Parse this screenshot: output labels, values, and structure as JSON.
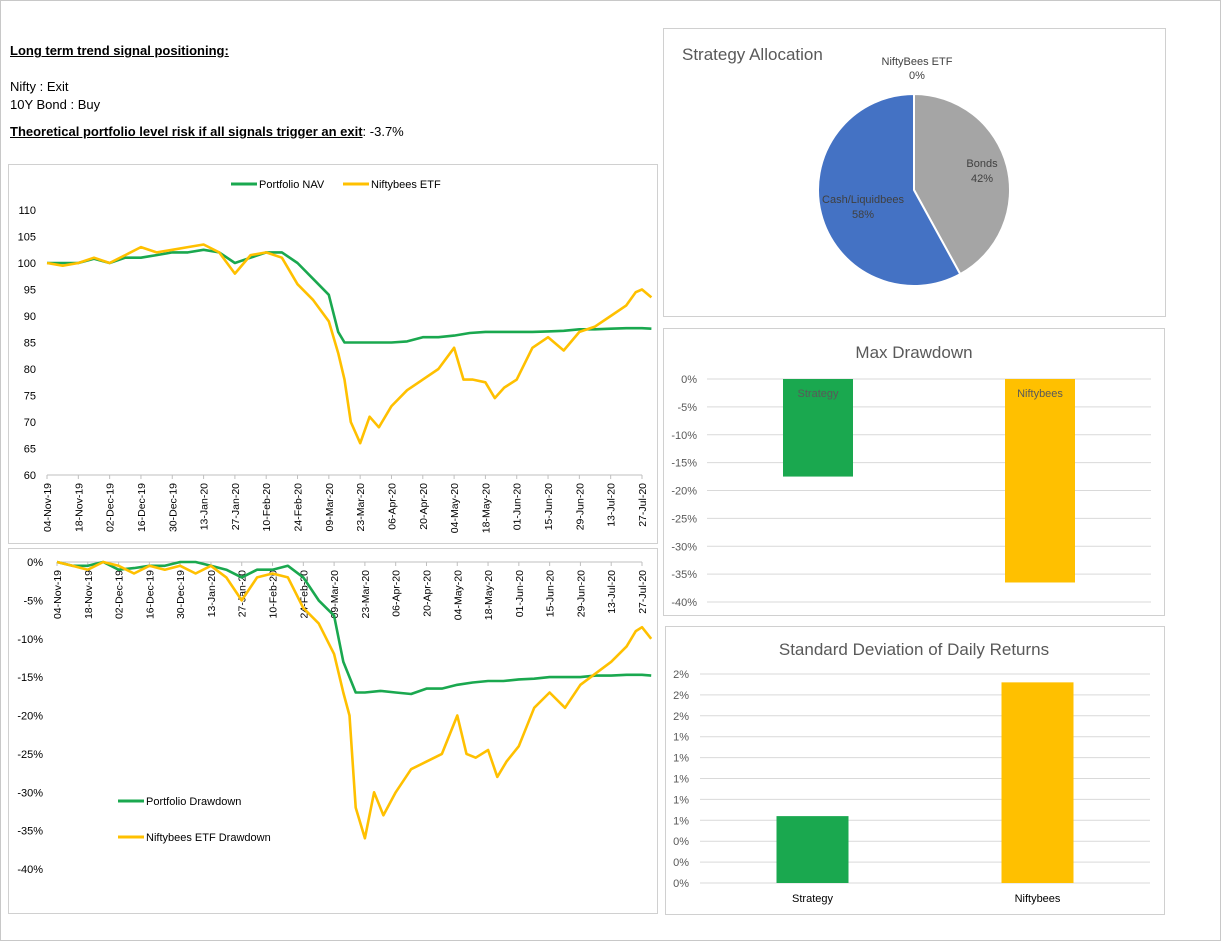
{
  "signals": {
    "heading": "Long term trend signal positioning:",
    "nifty_label": "Nifty",
    "nifty_value": "Exit",
    "bond_label": "10Y Bond",
    "bond_value": "Buy",
    "risk_label": "Theoretical portfolio level risk if all signals trigger an exit",
    "risk_value": "-3.7%"
  },
  "colors": {
    "green": "#1aa84f",
    "yellow": "#ffc000",
    "blue": "#4472c4",
    "grey": "#a5a5a5",
    "grid": "#d9d9d9",
    "axis_text": "#595959"
  },
  "chart_data": [
    {
      "id": "nav",
      "type": "line",
      "title": "",
      "x": [
        "04-Nov-19",
        "18-Nov-19",
        "02-Dec-19",
        "16-Dec-19",
        "30-Dec-19",
        "13-Jan-20",
        "27-Jan-20",
        "10-Feb-20",
        "24-Feb-20",
        "09-Mar-20",
        "23-Mar-20",
        "06-Apr-20",
        "20-Apr-20",
        "04-May-20",
        "18-May-20",
        "01-Jun-20",
        "15-Jun-20",
        "29-Jun-20",
        "13-Jul-20",
        "27-Jul-20"
      ],
      "ylim": [
        60,
        110
      ],
      "yticks": [
        60,
        65,
        70,
        75,
        80,
        85,
        90,
        95,
        100,
        105,
        110
      ],
      "legend_position": "top",
      "series": [
        {
          "name": "Portfolio NAV",
          "color_key": "green",
          "points": [
            [
              0,
              100
            ],
            [
              0.5,
              100
            ],
            [
              1,
              100
            ],
            [
              1.5,
              100.8
            ],
            [
              2,
              100
            ],
            [
              2.5,
              101
            ],
            [
              3,
              101
            ],
            [
              3.5,
              101.5
            ],
            [
              4,
              102
            ],
            [
              4.5,
              102
            ],
            [
              5,
              102.5
            ],
            [
              5.5,
              102
            ],
            [
              6,
              100
            ],
            [
              6.5,
              101
            ],
            [
              7,
              102
            ],
            [
              7.5,
              102
            ],
            [
              8,
              100
            ],
            [
              8.5,
              97
            ],
            [
              9,
              94
            ],
            [
              9.3,
              87
            ],
            [
              9.5,
              85
            ],
            [
              10,
              85
            ],
            [
              10.5,
              85
            ],
            [
              11,
              85
            ],
            [
              11.5,
              85.2
            ],
            [
              12,
              86
            ],
            [
              12.5,
              86
            ],
            [
              13,
              86.3
            ],
            [
              13.5,
              86.8
            ],
            [
              14,
              87
            ],
            [
              14.5,
              87
            ],
            [
              15,
              87
            ],
            [
              15.5,
              87
            ],
            [
              16,
              87.1
            ],
            [
              16.5,
              87.2
            ],
            [
              17,
              87.5
            ],
            [
              17.5,
              87.5
            ],
            [
              18,
              87.6
            ],
            [
              18.5,
              87.7
            ],
            [
              19,
              87.7
            ],
            [
              19.3,
              87.6
            ]
          ]
        },
        {
          "name": "Niftybees ETF",
          "color_key": "yellow",
          "points": [
            [
              0,
              100
            ],
            [
              0.5,
              99.5
            ],
            [
              1,
              100
            ],
            [
              1.5,
              101
            ],
            [
              2,
              100
            ],
            [
              2.5,
              101.5
            ],
            [
              3,
              103
            ],
            [
              3.5,
              102
            ],
            [
              4,
              102.5
            ],
            [
              4.5,
              103
            ],
            [
              5,
              103.5
            ],
            [
              5.5,
              102
            ],
            [
              6,
              98
            ],
            [
              6.5,
              101.5
            ],
            [
              7,
              102
            ],
            [
              7.5,
              101
            ],
            [
              8,
              96
            ],
            [
              8.5,
              93
            ],
            [
              9,
              89
            ],
            [
              9.3,
              83
            ],
            [
              9.5,
              78
            ],
            [
              9.7,
              70
            ],
            [
              10,
              66
            ],
            [
              10.3,
              71
            ],
            [
              10.6,
              69
            ],
            [
              11,
              73
            ],
            [
              11.5,
              76
            ],
            [
              12,
              78
            ],
            [
              12.5,
              80
            ],
            [
              13,
              84
            ],
            [
              13.3,
              78
            ],
            [
              13.6,
              78
            ],
            [
              14,
              77.5
            ],
            [
              14.3,
              74.5
            ],
            [
              14.6,
              76.5
            ],
            [
              15,
              78
            ],
            [
              15.5,
              84
            ],
            [
              16,
              86
            ],
            [
              16.5,
              83.5
            ],
            [
              17,
              87
            ],
            [
              17.5,
              88
            ],
            [
              18,
              90
            ],
            [
              18.5,
              92
            ],
            [
              18.8,
              94.5
            ],
            [
              19,
              95
            ],
            [
              19.3,
              93.5
            ]
          ]
        }
      ]
    },
    {
      "id": "drawdown",
      "type": "line",
      "title": "",
      "x": [
        "04-Nov-19",
        "18-Nov-19",
        "02-Dec-19",
        "16-Dec-19",
        "30-Dec-19",
        "13-Jan-20",
        "27-Jan-20",
        "10-Feb-20",
        "24-Feb-20",
        "09-Mar-20",
        "23-Mar-20",
        "06-Apr-20",
        "20-Apr-20",
        "04-May-20",
        "18-May-20",
        "01-Jun-20",
        "15-Jun-20",
        "29-Jun-20",
        "13-Jul-20",
        "27-Jul-20"
      ],
      "ylim": [
        -40,
        0
      ],
      "yticks": [
        0,
        -5,
        -10,
        -15,
        -20,
        -25,
        -30,
        -35,
        -40
      ],
      "ytick_labels": [
        "0%",
        "-5%",
        "-10%",
        "-15%",
        "-20%",
        "-25%",
        "-30%",
        "-35%",
        "-40%"
      ],
      "legend_position": "bottom-left",
      "series": [
        {
          "name": "Portfolio Drawdown",
          "color_key": "green",
          "points": [
            [
              0,
              0
            ],
            [
              0.5,
              -0.5
            ],
            [
              1,
              -0.5
            ],
            [
              1.5,
              0
            ],
            [
              2,
              -1
            ],
            [
              2.5,
              -0.8
            ],
            [
              3,
              -0.5
            ],
            [
              3.5,
              -0.5
            ],
            [
              4,
              0
            ],
            [
              4.5,
              0
            ],
            [
              5,
              -0.5
            ],
            [
              5.5,
              -1
            ],
            [
              6,
              -2
            ],
            [
              6.5,
              -1
            ],
            [
              7,
              -1
            ],
            [
              7.5,
              -0.5
            ],
            [
              8,
              -2
            ],
            [
              8.5,
              -5
            ],
            [
              9,
              -7
            ],
            [
              9.3,
              -13
            ],
            [
              9.5,
              -15
            ],
            [
              9.7,
              -17
            ],
            [
              10,
              -17
            ],
            [
              10.5,
              -16.8
            ],
            [
              11,
              -17
            ],
            [
              11.5,
              -17.2
            ],
            [
              12,
              -16.5
            ],
            [
              12.5,
              -16.5
            ],
            [
              13,
              -16
            ],
            [
              13.5,
              -15.7
            ],
            [
              14,
              -15.5
            ],
            [
              14.5,
              -15.5
            ],
            [
              15,
              -15.3
            ],
            [
              15.5,
              -15.2
            ],
            [
              16,
              -15
            ],
            [
              16.5,
              -15
            ],
            [
              17,
              -15
            ],
            [
              17.5,
              -14.8
            ],
            [
              18,
              -14.8
            ],
            [
              18.5,
              -14.7
            ],
            [
              19,
              -14.7
            ],
            [
              19.3,
              -14.8
            ]
          ]
        },
        {
          "name": "Niftybees ETF Drawdown",
          "color_key": "yellow",
          "points": [
            [
              0,
              0
            ],
            [
              0.5,
              -0.5
            ],
            [
              1,
              -1
            ],
            [
              1.5,
              0
            ],
            [
              2,
              -0.5
            ],
            [
              2.5,
              -1.5
            ],
            [
              3,
              -0.5
            ],
            [
              3.5,
              -1
            ],
            [
              4,
              -0.5
            ],
            [
              4.5,
              -1.5
            ],
            [
              5,
              -0.5
            ],
            [
              5.5,
              -2
            ],
            [
              6,
              -5
            ],
            [
              6.5,
              -2
            ],
            [
              7,
              -1.5
            ],
            [
              7.5,
              -2
            ],
            [
              8,
              -6
            ],
            [
              8.5,
              -8
            ],
            [
              9,
              -12
            ],
            [
              9.3,
              -17
            ],
            [
              9.5,
              -20
            ],
            [
              9.7,
              -32
            ],
            [
              10,
              -36
            ],
            [
              10.3,
              -30
            ],
            [
              10.6,
              -33
            ],
            [
              11,
              -30
            ],
            [
              11.5,
              -27
            ],
            [
              12,
              -26
            ],
            [
              12.5,
              -25
            ],
            [
              13,
              -20
            ],
            [
              13.3,
              -25
            ],
            [
              13.6,
              -25.5
            ],
            [
              14,
              -24.5
            ],
            [
              14.3,
              -28
            ],
            [
              14.6,
              -26
            ],
            [
              15,
              -24
            ],
            [
              15.5,
              -19
            ],
            [
              16,
              -17
            ],
            [
              16.5,
              -19
            ],
            [
              17,
              -16
            ],
            [
              17.5,
              -14.5
            ],
            [
              18,
              -13
            ],
            [
              18.5,
              -11
            ],
            [
              18.8,
              -9
            ],
            [
              19,
              -8.5
            ],
            [
              19.3,
              -10
            ]
          ]
        }
      ]
    },
    {
      "id": "allocation",
      "type": "pie",
      "title": "Strategy Allocation",
      "slices": [
        {
          "label": "NiftyBees ETF",
          "value": 0,
          "pct_label": "0%",
          "color_key": "blue"
        },
        {
          "label": "Bonds",
          "value": 42,
          "pct_label": "42%",
          "color_key": "grey"
        },
        {
          "label": "Cash/Liquidbees",
          "value": 58,
          "pct_label": "58%",
          "color_key": "blue"
        }
      ]
    },
    {
      "id": "maxdd",
      "type": "bar",
      "title": "Max Drawdown",
      "categories": [
        "Strategy",
        "Niftybees"
      ],
      "values": [
        -17.5,
        -36.5
      ],
      "ylim": [
        -40,
        0
      ],
      "yticks": [
        0,
        -5,
        -10,
        -15,
        -20,
        -25,
        -30,
        -35,
        -40
      ],
      "ytick_labels": [
        "0%",
        "-5%",
        "-10%",
        "-15%",
        "-20%",
        "-25%",
        "-30%",
        "-35%",
        "-40%"
      ],
      "bar_colors": [
        "green",
        "yellow"
      ]
    },
    {
      "id": "stddev",
      "type": "bar",
      "title": "Standard Deviation of Daily Returns",
      "categories": [
        "Strategy",
        "Niftybees"
      ],
      "values": [
        0.8,
        2.4
      ],
      "ylim": [
        0,
        2.5
      ],
      "yticks": [
        0,
        0.25,
        0.5,
        0.75,
        1,
        1.25,
        1.5,
        1.75,
        2,
        2.25,
        2.5
      ],
      "ytick_labels": [
        "0%",
        "0%",
        "0%",
        "1%",
        "1%",
        "1%",
        "1%",
        "1%",
        "2%",
        "2%",
        "2%"
      ],
      "bar_colors": [
        "green",
        "yellow"
      ]
    }
  ]
}
